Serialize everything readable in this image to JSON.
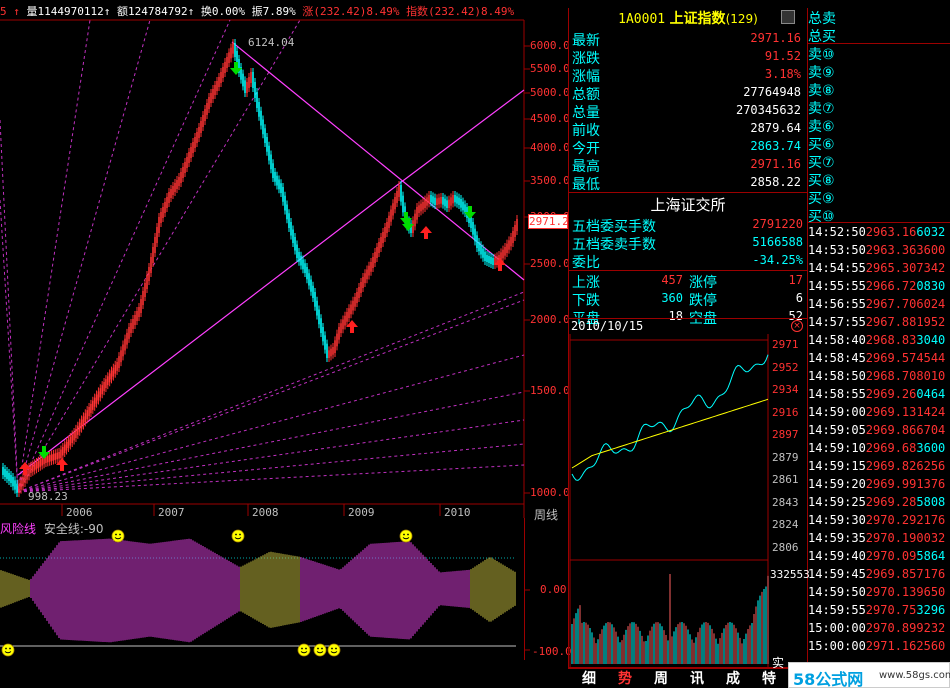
{
  "header": {
    "vol_label": "量",
    "vol_value": "1144970112",
    "amt_label": "额",
    "amt_value": "124784792",
    "turnover_label": "换",
    "turnover_value": "0.00%",
    "amp_label": "振",
    "amp_value": "7.89%",
    "chg_label": "涨",
    "chg_value": "(232.42)8.49%",
    "idx_label": "指数",
    "idx_value": "(232.42)8.49%"
  },
  "main_chart": {
    "price_axis": [
      "6000.0",
      "5500.0",
      "5000.0",
      "4500.0",
      "4000.0",
      "3500.0",
      "3000.0",
      "2500.0",
      "2000.0",
      "1500.0",
      "1000.0"
    ],
    "year_labels": [
      "2006",
      "2007",
      "2008",
      "2009",
      "2010"
    ],
    "high_label": "6124.04",
    "low_label": "998.23",
    "current_tag": "2971.2",
    "period_label": "周线"
  },
  "indicator": {
    "name": "风险线",
    "safety_label": "安全线:",
    "safety_value": "-90",
    "axis": [
      "0.00",
      "-100.0"
    ]
  },
  "quote": {
    "code": "1A0001",
    "name": "上证指数",
    "count": "(129)",
    "rows": [
      {
        "label": "最新",
        "value": "2971.16",
        "color": "#ff3232"
      },
      {
        "label": "涨跌",
        "value": "91.52",
        "color": "#ff3232"
      },
      {
        "label": "涨幅",
        "value": "3.18%",
        "color": "#ff3232"
      },
      {
        "label": "总额",
        "value": "27764948",
        "color": "#ffffff"
      },
      {
        "label": "总量",
        "value": "270345632",
        "color": "#ffffff"
      },
      {
        "label": "前收",
        "value": "2879.64",
        "color": "#ffffff"
      },
      {
        "label": "今开",
        "value": "2863.74",
        "color": "#00ffff"
      },
      {
        "label": "最高",
        "value": "2971.16",
        "color": "#ff3232"
      },
      {
        "label": "最低",
        "value": "2858.22",
        "color": "#ffffff"
      }
    ],
    "exchange": "上海证交所",
    "five_buy_label": "五档委买手数",
    "five_buy_value": "2791220",
    "five_sell_label": "五档委卖手数",
    "five_sell_value": "5166588",
    "ratio_label": "委比",
    "ratio_value": "-34.25%",
    "up_label": "上涨",
    "up_value": "457",
    "limit_up_label": "涨停",
    "limit_up_value": "17",
    "down_label": "下跌",
    "down_value": "360",
    "limit_down_label": "跌停",
    "limit_down_value": "6",
    "flat_label": "平盘",
    "flat_value": "18",
    "empty_label": "空盘",
    "empty_value": "52"
  },
  "intraday": {
    "date": "2010/10/15",
    "axis": [
      "2971",
      "2952",
      "2934",
      "2916",
      "2897",
      "2879",
      "2861",
      "2843",
      "2824",
      "2806"
    ],
    "vol_max": "332553",
    "tab_real": "实"
  },
  "side_book": {
    "rows": [
      "总卖",
      "总买",
      "卖⑩",
      "卖⑨",
      "卖⑧",
      "卖⑦",
      "卖⑥",
      "买⑥",
      "买⑦",
      "买⑧",
      "买⑨",
      "买⑩"
    ]
  },
  "ticks": [
    {
      "time": "14:52:50",
      "price": "2963.16",
      "vol": "6032"
    },
    {
      "time": "14:53:50",
      "price": "2963.36",
      "vol": "3600"
    },
    {
      "time": "14:54:55",
      "price": "2965.30",
      "vol": "7342"
    },
    {
      "time": "14:55:55",
      "price": "2966.72",
      "vol": "0830"
    },
    {
      "time": "14:56:55",
      "price": "2967.70",
      "vol": "6024"
    },
    {
      "time": "14:57:55",
      "price": "2967.88",
      "vol": "1952"
    },
    {
      "time": "14:58:40",
      "price": "2968.83",
      "vol": "3040"
    },
    {
      "time": "14:58:45",
      "price": "2969.57",
      "vol": "4544"
    },
    {
      "time": "14:58:50",
      "price": "2968.70",
      "vol": "8010"
    },
    {
      "time": "14:58:55",
      "price": "2969.26",
      "vol": "0464"
    },
    {
      "time": "14:59:00",
      "price": "2969.13",
      "vol": "1424"
    },
    {
      "time": "14:59:05",
      "price": "2969.86",
      "vol": "6704"
    },
    {
      "time": "14:59:10",
      "price": "2969.68",
      "vol": "3600"
    },
    {
      "time": "14:59:15",
      "price": "2969.82",
      "vol": "6256"
    },
    {
      "time": "14:59:20",
      "price": "2969.99",
      "vol": "1376"
    },
    {
      "time": "14:59:25",
      "price": "2969.28",
      "vol": "5808"
    },
    {
      "time": "14:59:30",
      "price": "2970.29",
      "vol": "2176"
    },
    {
      "time": "14:59:35",
      "price": "2970.19",
      "vol": "0032"
    },
    {
      "time": "14:59:40",
      "price": "2970.09",
      "vol": "5864"
    },
    {
      "time": "14:59:45",
      "price": "2969.85",
      "vol": "7176"
    },
    {
      "time": "14:59:50",
      "price": "2970.13",
      "vol": "9650"
    },
    {
      "time": "14:59:55",
      "price": "2970.75",
      "vol": "3296"
    },
    {
      "time": "15:00:00",
      "price": "2970.89",
      "vol": "9232"
    },
    {
      "time": "15:00:00",
      "price": "2971.16",
      "vol": "2560"
    }
  ],
  "bottom_tabs": [
    "细",
    "势",
    "周",
    "讯",
    "成",
    "特"
  ],
  "watermark": {
    "brand": "58公式网",
    "url": "www.58gs.com"
  }
}
